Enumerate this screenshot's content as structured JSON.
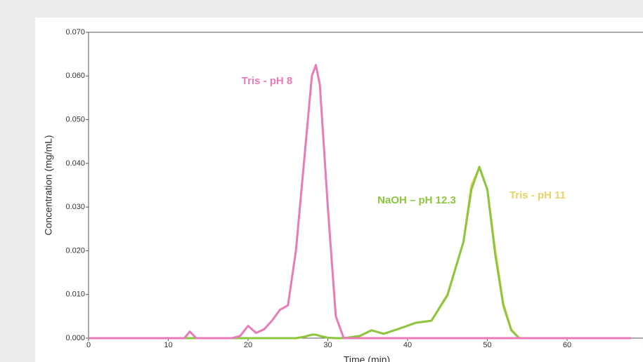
{
  "chart_data": {
    "type": "line",
    "xlabel": "Time (min)",
    "ylabel": "Concentration (mg/mL)",
    "x": [
      0,
      5,
      10,
      12,
      12.7,
      13.5,
      18,
      19,
      20,
      21,
      22,
      23,
      24,
      25,
      26,
      27,
      28,
      28.5,
      29,
      30,
      31,
      32,
      34,
      35.5,
      37,
      39,
      41,
      43,
      45,
      47,
      48,
      49,
      50,
      51,
      52,
      53,
      54,
      60,
      68
    ],
    "series": [
      {
        "name": "Tris - pH 11",
        "color": "#e8d466",
        "values": [
          0,
          0,
          0,
          0,
          0,
          0,
          0,
          0,
          0,
          0,
          0,
          0,
          0,
          0,
          0,
          0.0003,
          0.0008,
          0.0008,
          0.0005,
          0.0001,
          0,
          0,
          0.0005,
          0.0018,
          0.001,
          0.0022,
          0.0035,
          0.004,
          0.01,
          0.022,
          0.035,
          0.039,
          0.034,
          0.02,
          0.008,
          0.002,
          0,
          0,
          0
        ]
      },
      {
        "name": "NaOH – pH 12.3",
        "color": "#8cc63f",
        "values": [
          0,
          0,
          0,
          0,
          0,
          0,
          0,
          0,
          0,
          0,
          0,
          0,
          0,
          0,
          0,
          0.0003,
          0.0008,
          0.0008,
          0.0005,
          0.0001,
          0,
          0,
          0.0005,
          0.0018,
          0.001,
          0.0022,
          0.0035,
          0.004,
          0.0098,
          0.022,
          0.034,
          0.0392,
          0.034,
          0.019,
          0.0075,
          0.0018,
          0,
          0,
          0
        ]
      },
      {
        "name": "Tris - pH 8",
        "color": "#e87bb8",
        "values": [
          0,
          0,
          0,
          0,
          0.0015,
          0,
          0,
          0.0005,
          0.0028,
          0.0012,
          0.002,
          0.004,
          0.0065,
          0.0075,
          0.02,
          0.04,
          0.06,
          0.0625,
          0.058,
          0.03,
          0.005,
          0,
          0,
          0,
          0,
          0,
          0,
          0,
          0,
          0,
          0,
          0,
          0,
          0,
          0,
          0,
          0,
          0,
          0
        ]
      }
    ],
    "xlim": [
      0,
      70
    ],
    "xticks": [
      0,
      10,
      20,
      30,
      40,
      50,
      60,
      70
    ],
    "ylim": [
      0,
      0.07
    ],
    "yticks": [
      {
        "value": 0,
        "label": "0.000"
      },
      {
        "value": 0.01,
        "label": "0.010"
      },
      {
        "value": 0.02,
        "label": "0.020"
      },
      {
        "value": 0.03,
        "label": "0.030"
      },
      {
        "value": 0.04,
        "label": "0.040"
      },
      {
        "value": 0.05,
        "label": "0.050"
      },
      {
        "value": 0.06,
        "label": "0.060"
      },
      {
        "value": 0.07,
        "label": "0.070"
      }
    ]
  }
}
